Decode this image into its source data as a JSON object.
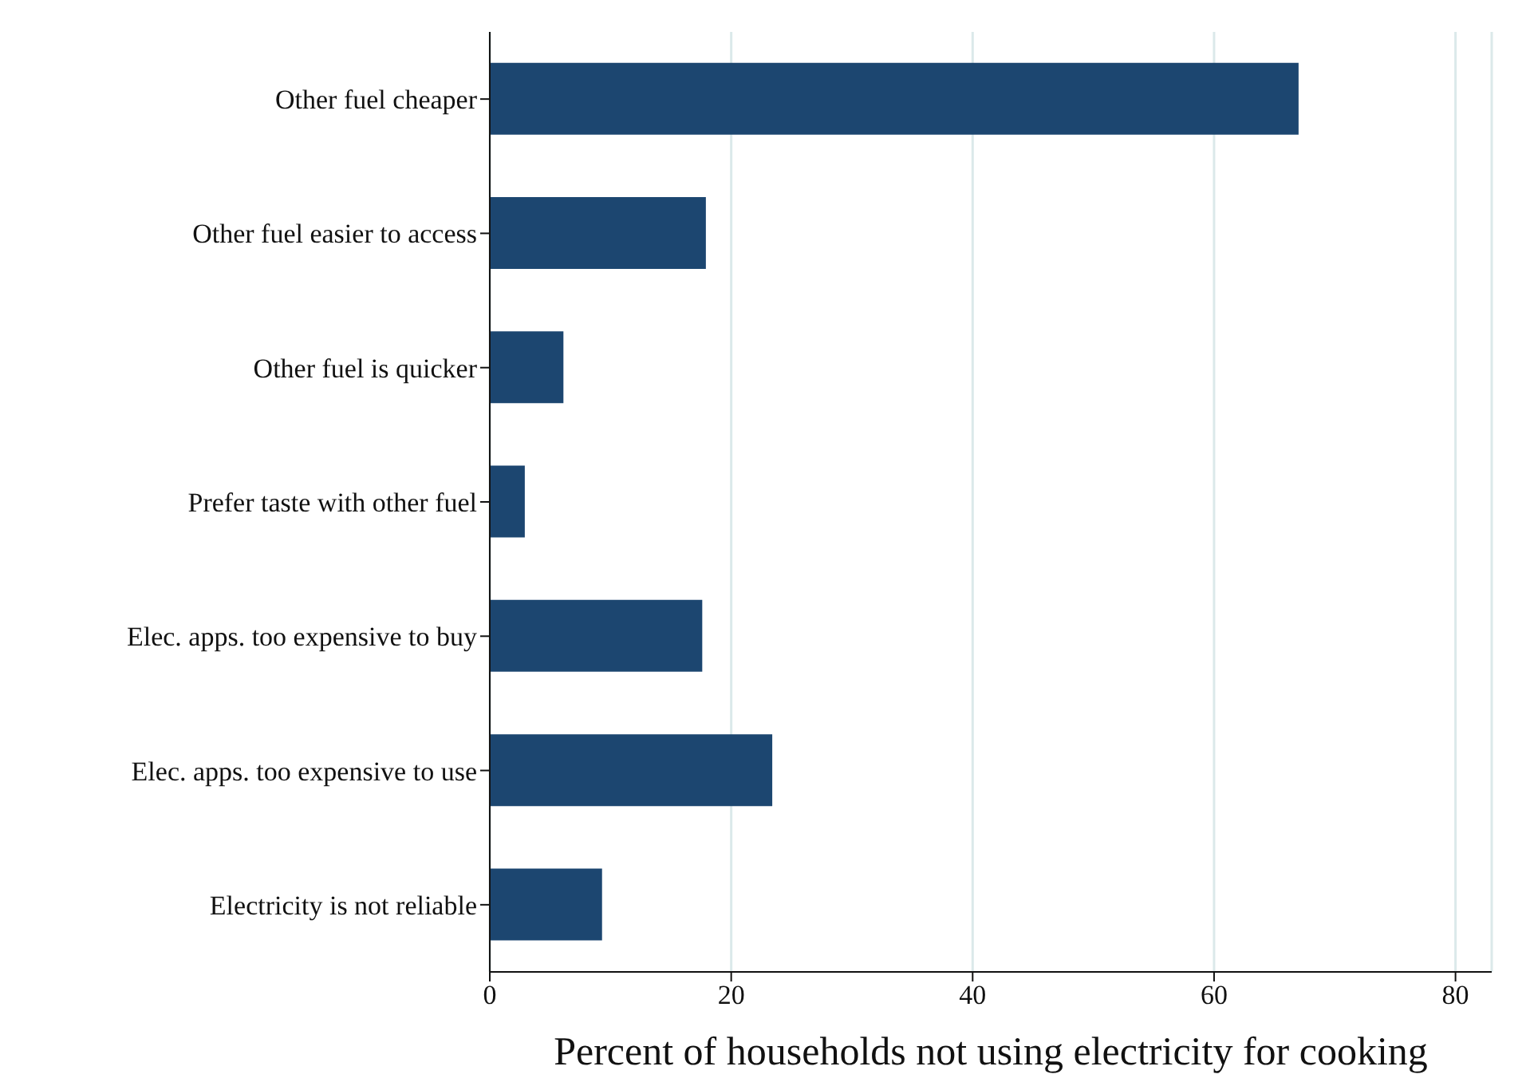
{
  "chart_data": {
    "type": "bar",
    "orientation": "horizontal",
    "xlabel": "Percent of households not using electricity for cooking",
    "categories": [
      "Other fuel cheaper",
      "Other fuel easier to access",
      "Other fuel is quicker",
      "Prefer taste with other fuel",
      "Elec. apps. too expensive to buy",
      "Elec. apps. too expensive to use",
      "Electricity is not reliable"
    ],
    "values": [
      67,
      17.9,
      6.1,
      2.9,
      17.6,
      23.4,
      9.3
    ],
    "color": "#1c4670",
    "xlim": [
      0,
      83
    ],
    "xticks": [
      0,
      20,
      40,
      60,
      80
    ],
    "grid": "x"
  }
}
